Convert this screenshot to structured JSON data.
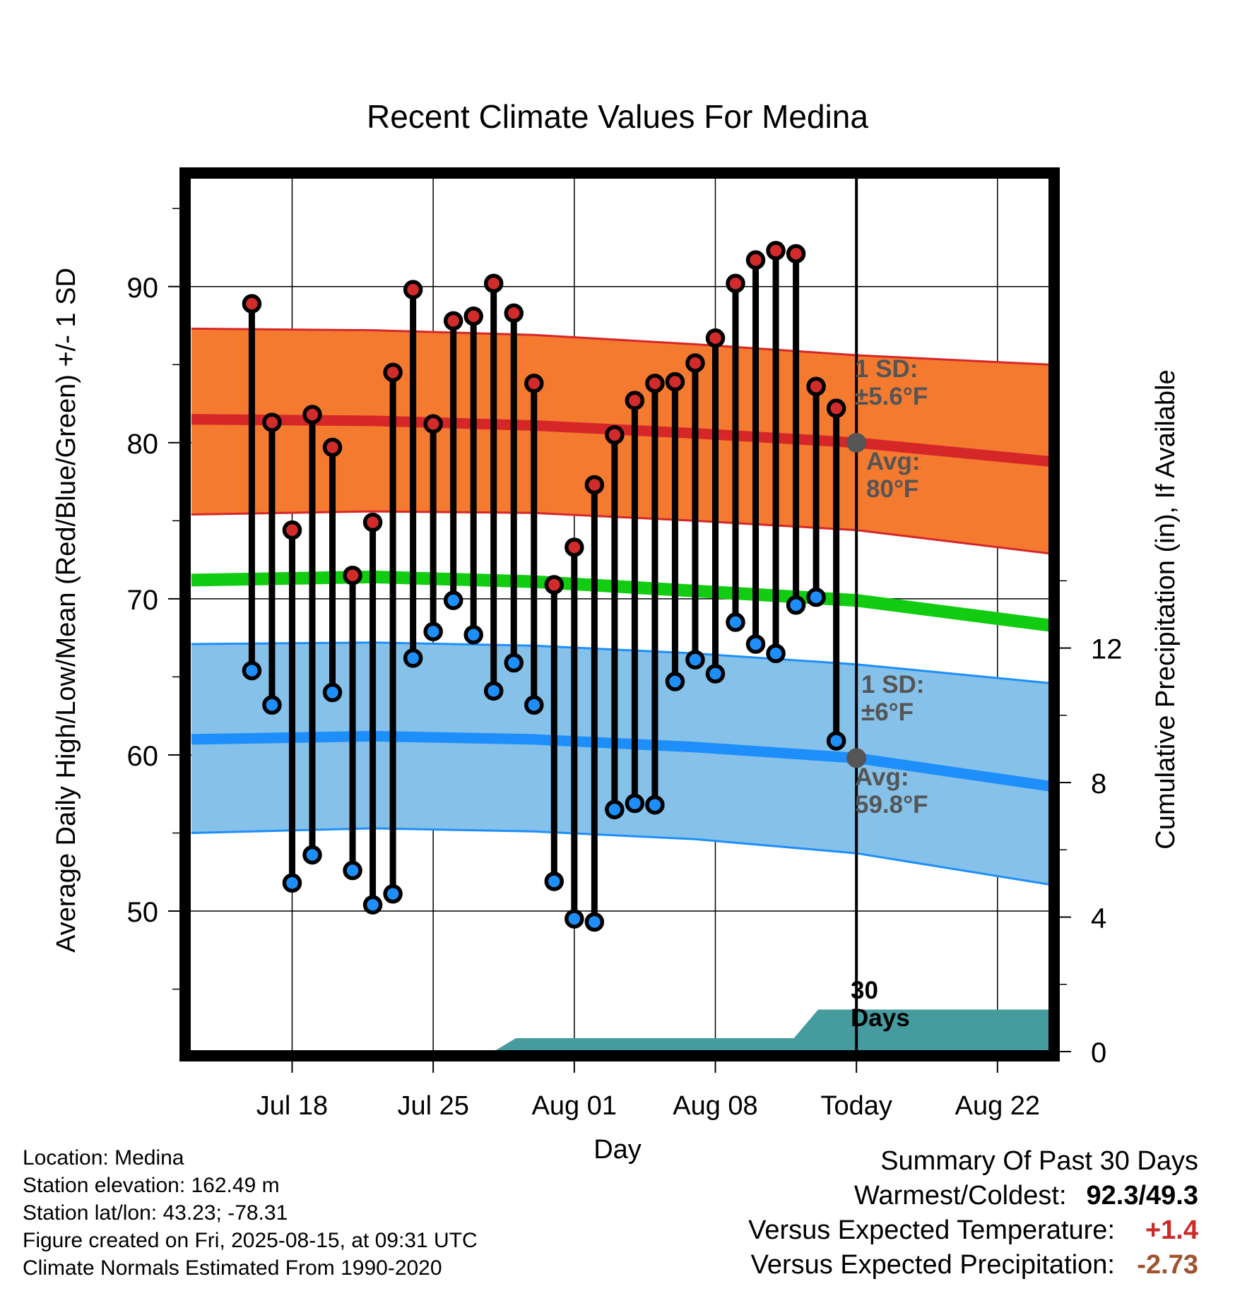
{
  "chart_data": {
    "type": "line",
    "title": "Recent Climate Values For Medina",
    "xlabel": "Day",
    "ylabel_left": "Average Daily High/Low/Mean (Red/Blue/Green) +/- 1 SD",
    "ylabel_right": "Cumulative Precipitation (in), If Available",
    "x_ticks": [
      "Jul 18",
      "Jul 25",
      "Aug 01",
      "Aug 08",
      "Today",
      "Aug 22"
    ],
    "x_range_days": [
      -33.1,
      9.6
    ],
    "ylim_left": [
      41,
      97
    ],
    "y_ticks_left": [
      50,
      60,
      70,
      80,
      90
    ],
    "ylim_right": [
      0,
      26
    ],
    "y_ticks_right": [
      0,
      4,
      8,
      12
    ],
    "grid": true,
    "days_before_today": [
      30,
      29,
      28,
      27,
      26,
      25,
      24,
      23,
      22,
      21,
      20,
      19,
      18,
      17,
      16,
      15,
      14,
      13,
      12,
      11,
      10,
      9,
      8,
      7,
      6,
      5,
      4,
      3,
      2,
      1
    ],
    "daily_high": [
      88.9,
      81.3,
      74.4,
      81.8,
      79.7,
      71.5,
      74.9,
      84.5,
      89.8,
      81.2,
      87.8,
      88.1,
      90.2,
      88.3,
      83.8,
      70.9,
      73.3,
      77.3,
      80.5,
      82.7,
      83.8,
      83.9,
      85.1,
      86.7,
      90.2,
      91.7,
      92.3,
      92.1,
      83.6,
      82.2
    ],
    "daily_low": [
      65.4,
      63.2,
      51.8,
      53.6,
      64.0,
      52.6,
      50.4,
      51.1,
      66.2,
      67.9,
      69.9,
      67.7,
      64.1,
      65.9,
      63.2,
      51.9,
      49.5,
      49.3,
      56.5,
      56.9,
      56.8,
      64.7,
      66.1,
      65.2,
      68.5,
      67.1,
      66.5,
      69.6,
      70.1,
      60.9
    ],
    "normal_high_avg": [
      {
        "days": -33,
        "value": 81.5
      },
      {
        "days": -24,
        "value": 81.4
      },
      {
        "days": -16,
        "value": 81.1
      },
      {
        "days": -8,
        "value": 80.6
      },
      {
        "days": 0,
        "value": 80.0
      },
      {
        "days": 9.6,
        "value": 78.8
      }
    ],
    "normal_high_sd_upper": [
      {
        "days": -33,
        "value": 87.3
      },
      {
        "days": -24,
        "value": 87.2
      },
      {
        "days": -16,
        "value": 86.9
      },
      {
        "days": -8,
        "value": 86.3
      },
      {
        "days": 0,
        "value": 85.6
      },
      {
        "days": 9.6,
        "value": 85.0
      }
    ],
    "normal_high_sd_lower": [
      {
        "days": -33,
        "value": 75.4
      },
      {
        "days": -24,
        "value": 75.6
      },
      {
        "days": -16,
        "value": 75.5
      },
      {
        "days": -8,
        "value": 75.0
      },
      {
        "days": 0,
        "value": 74.4
      },
      {
        "days": 9.6,
        "value": 72.9
      }
    ],
    "normal_mean": [
      {
        "days": -33,
        "value": 71.2
      },
      {
        "days": -24,
        "value": 71.4
      },
      {
        "days": -16,
        "value": 71.1
      },
      {
        "days": -8,
        "value": 70.5
      },
      {
        "days": 0,
        "value": 69.9
      },
      {
        "days": 9.6,
        "value": 68.3
      }
    ],
    "normal_low_avg": [
      {
        "days": -33,
        "value": 61.0
      },
      {
        "days": -24,
        "value": 61.2
      },
      {
        "days": -16,
        "value": 61.0
      },
      {
        "days": -8,
        "value": 60.5
      },
      {
        "days": 0,
        "value": 59.8
      },
      {
        "days": 9.6,
        "value": 58.0
      }
    ],
    "normal_low_sd_upper": [
      {
        "days": -33,
        "value": 67.1
      },
      {
        "days": -24,
        "value": 67.2
      },
      {
        "days": -16,
        "value": 67.0
      },
      {
        "days": -8,
        "value": 66.5
      },
      {
        "days": 0,
        "value": 65.8
      },
      {
        "days": 9.6,
        "value": 64.6
      }
    ],
    "normal_low_sd_lower": [
      {
        "days": -33,
        "value": 55.0
      },
      {
        "days": -24,
        "value": 55.3
      },
      {
        "days": -16,
        "value": 55.1
      },
      {
        "days": -8,
        "value": 54.6
      },
      {
        "days": 0,
        "value": 53.7
      },
      {
        "days": 9.6,
        "value": 51.7
      }
    ],
    "cumulative_precip_in": [
      {
        "days": -33.1,
        "value": 0
      },
      {
        "days": -18,
        "value": 0
      },
      {
        "days": -16.9,
        "value": 0.4
      },
      {
        "days": -3.1,
        "value": 0.4
      },
      {
        "days": -1.9,
        "value": 1.25
      },
      {
        "days": 9.6,
        "value": 1.25
      }
    ],
    "annotations": {
      "high_sd": "1 SD:\n±5.6°F",
      "high_avg": "Avg:\n80°F",
      "low_sd": "1 SD:\n±6°F",
      "low_avg": "Avg:\n59.8°F",
      "period": "30\nDays"
    },
    "colors": {
      "high_band": "#f47a30",
      "high_line": "#d62728",
      "mean_line": "#11cc11",
      "low_band": "#85c1e8",
      "low_line": "#1e8ffa",
      "precip": "#469b9f",
      "annotation_text": "#555555",
      "high_point": "#d22b2b",
      "low_point": "#1e8ffa"
    }
  },
  "info": {
    "location": "Location: Medina",
    "elevation": "Station elevation: 162.49 m",
    "latlon": "Station lat/lon: 43.23; -78.31",
    "created": "Figure created on Fri, 2025-08-15, at 09:31 UTC",
    "normals": "Climate Normals Estimated From 1990-2020"
  },
  "summary": {
    "title": "Summary Of Past 30 Days",
    "warm_cold_label": "Warmest/Coldest:",
    "warm_cold_value": "92.3/49.3",
    "temp_label": "Versus Expected Temperature:",
    "temp_value": "+1.4",
    "temp_color": "#cc2929",
    "precip_label": "Versus Expected Precipitation:",
    "precip_value": "-2.73",
    "precip_color": "#a0522d"
  }
}
